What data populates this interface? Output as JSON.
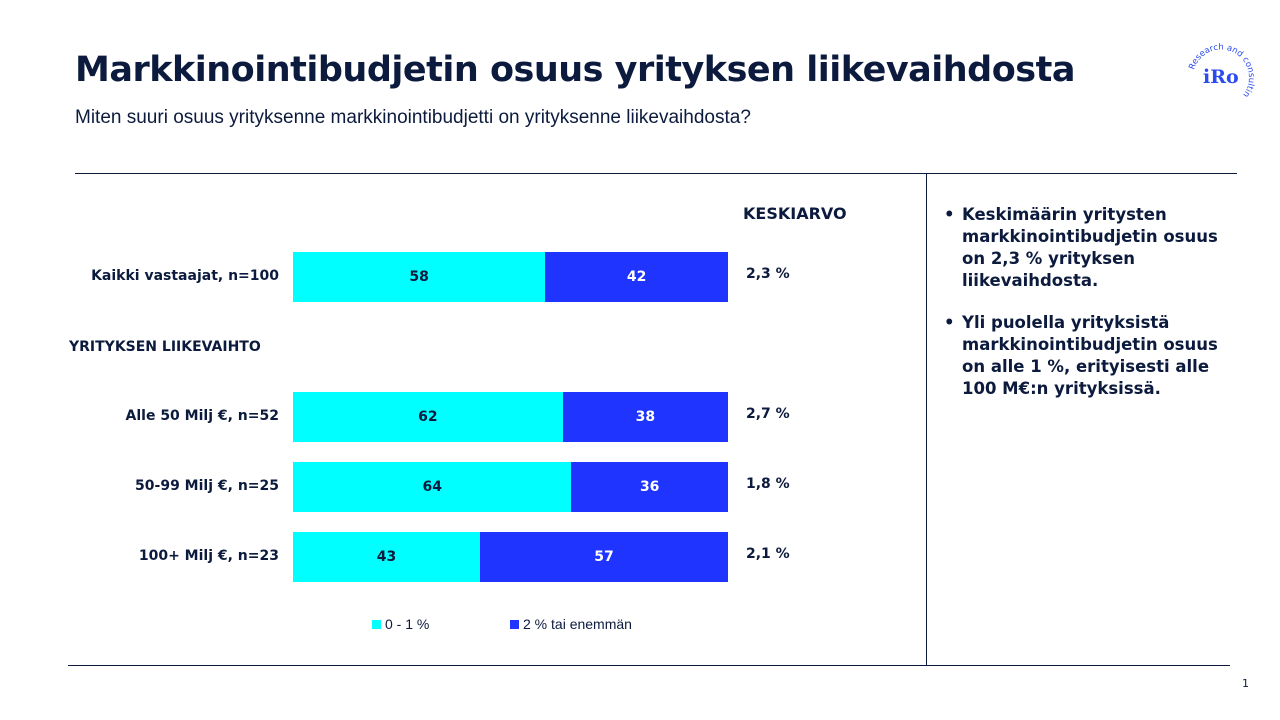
{
  "header": {
    "title": "Markkinointibudjetin osuus yrityksen liikevaihdosta",
    "subtitle": "Miten suuri osuus yrityksenne markkinointibudjetti on yrityksenne liikevaihdosta?"
  },
  "logo": {
    "text": "iRo",
    "tagline": "Research and consulting"
  },
  "chart_data": {
    "type": "bar",
    "orientation": "horizontal-stacked-100",
    "categories": [
      "Kaikki vastaajat, n=100",
      "Alle 50 Milj €, n=52",
      "50-99 Milj €, n=25",
      "100+ Milj €, n=23"
    ],
    "group_label": "YRITYKSEN LIIKEVAIHTO",
    "series": [
      {
        "name": "0 - 1 %",
        "values": [
          58,
          62,
          64,
          43
        ],
        "color": "#00FFFF"
      },
      {
        "name": "2 % tai enemmän",
        "values": [
          42,
          38,
          36,
          57
        ],
        "color": "#1F35FF"
      }
    ],
    "mean_header": "KESKIARVO",
    "means": [
      "2,3 %",
      "2,7 %",
      "1,8 %",
      "2,1 %"
    ],
    "legend_position": "bottom",
    "xlim": [
      0,
      100
    ]
  },
  "bullets": [
    "Keskimäärin yritysten markkinointibudjetin osuus on 2,3 % yrityksen liikevaihdosta.",
    "Yli puolella yrityksistä markkinointibudjetin osuus on alle 1 %, erityisesti alle 100 M€:n yrityksissä."
  ],
  "page_number": "1"
}
